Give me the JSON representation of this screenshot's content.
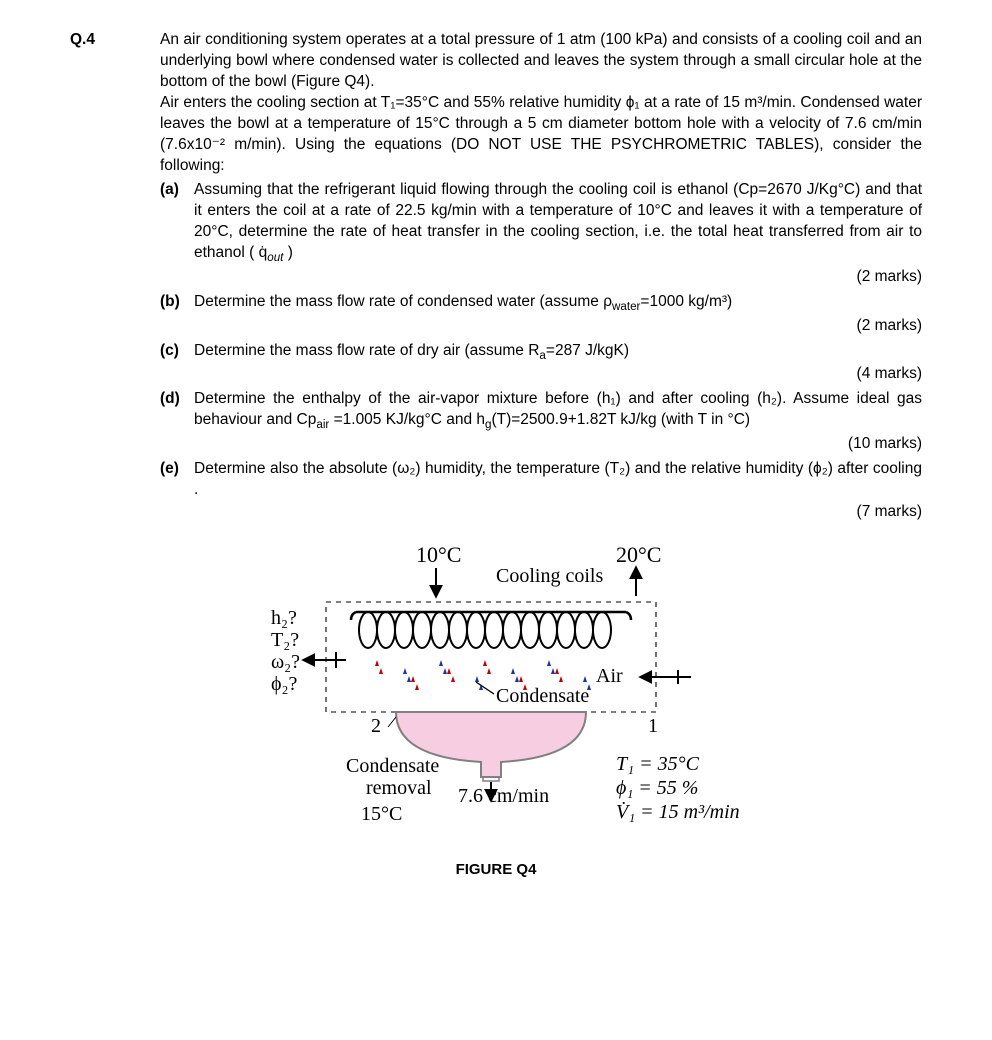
{
  "question_number": "Q.4",
  "intro_paragraphs": [
    "An air conditioning system operates at a total pressure of 1 atm (100 kPa) and consists of a cooling coil and an underlying bowl where condensed water is collected and leaves the system through a small circular hole at the bottom of the bowl (Figure Q4).",
    "Air enters the cooling section at T₁=35°C and 55% relative humidity ϕ₁ at a rate of 15 m³/min. Condensed water leaves the bowl at a temperature of 15°C through a 5 cm diameter bottom hole with a velocity of 7.6 cm/min (7.6x10⁻² m/min). Using the equations (DO NOT USE THE PSYCHROMETRIC TABLES), consider the following:"
  ],
  "parts": {
    "a": {
      "label": "(a)",
      "html": "Assuming that the refrigerant liquid flowing through the cooling coil is ethanol (Cp=2670 J/Kg°C) and that it enters the coil at a rate of 22.5 kg/min with a temperature of 10°C and leaves it with a temperature of 20°C, determine the rate of heat transfer in the cooling section, i.e. the total heat transferred from air to ethanol ( q̇<sub><i>out</i></sub> )",
      "marks": "(2 marks)"
    },
    "b": {
      "label": "(b)",
      "html": "Determine the mass flow rate of condensed water (assume ρ<sub>water</sub>=1000 kg/m³)",
      "marks": "(2 marks)"
    },
    "c": {
      "label": "(c)",
      "html": "Determine the mass flow rate of dry air (assume R<sub>a</sub>=287 J/kgK)",
      "marks": "(4 marks)"
    },
    "d": {
      "label": "(d)",
      "html": "Determine the enthalpy of the air-vapor mixture before (h₁) and after cooling (h₂). Assume ideal gas behaviour and Cp<sub>air</sub> =1.005 KJ/kg°C and h<sub>g</sub>(T)=2500.9+1.82T kJ/kg (with T in °C)",
      "marks": "(10 marks)"
    },
    "e": {
      "label": "(e)",
      "html": "Determine also the absolute (ω₂) humidity, the temperature (T₂) and the relative humidity (ϕ₂) after cooling .",
      "marks": "(7 marks)"
    }
  },
  "figure": {
    "caption": "FIGURE Q4",
    "labels": {
      "temp_in": "10°C",
      "temp_out": "20°C",
      "cooling_coils": "Cooling coils",
      "air": "Air",
      "condensate": "Condensate",
      "condensate_removal_l1": "Condensate",
      "condensate_removal_l2": "removal",
      "drain_vel": "7.6 cm/min",
      "drain_temp": "15°C",
      "state1": "1",
      "state2": "2",
      "h2": "h₂?",
      "T2": "T₂?",
      "w2": "ω₂?",
      "phi2": "ϕ₂?",
      "T1": "T₁ = 35°C",
      "phi1": "ϕ₁ = 55 %",
      "Vdot1": "V̇₁ = 15 m³/min"
    },
    "colors": {
      "bowl_fill": "#f7cde2",
      "bowl_stroke": "#808080",
      "drop_red": "#c00000",
      "drop_blue": "#2030a0",
      "text": "#000000",
      "line": "#000000"
    },
    "font_sizes": {
      "label": 20,
      "italic_math": 20
    }
  }
}
